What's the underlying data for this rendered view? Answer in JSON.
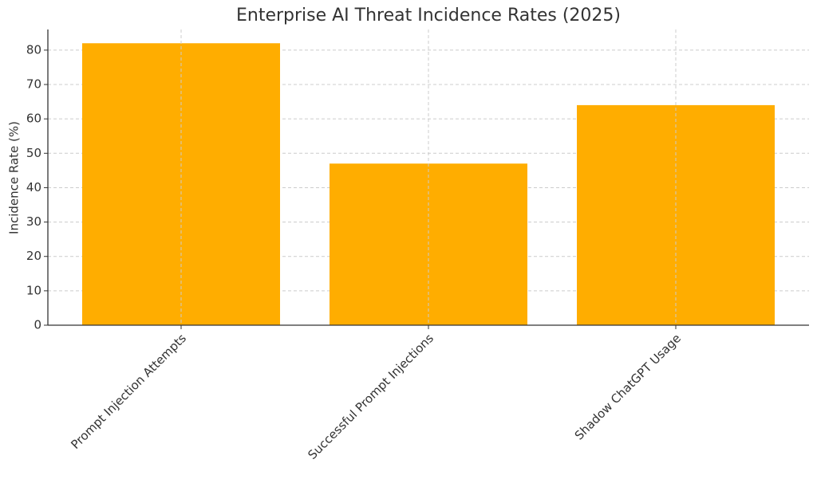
{
  "chart_data": {
    "type": "bar",
    "title": "Enterprise AI Threat Incidence Rates (2025)",
    "y_label": "Incidence Rate (%)",
    "categories": [
      "Prompt Injection Attempts",
      "Successful Prompt Injections",
      "Shadow ChatGPT Usage"
    ],
    "values": [
      82,
      47,
      64
    ],
    "color": "#ffad00",
    "ylim": [
      0,
      86
    ],
    "yticks": [
      0,
      10,
      20,
      30,
      40,
      50,
      60,
      70,
      80
    ],
    "grid": true
  }
}
